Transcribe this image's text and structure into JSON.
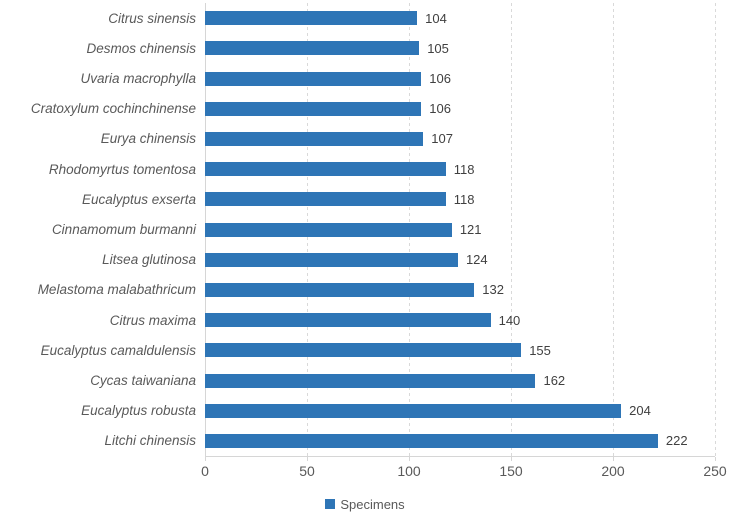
{
  "chart_data": {
    "type": "bar",
    "orientation": "horizontal",
    "title": "",
    "xlabel": "",
    "ylabel": "",
    "categories": [
      "Citrus sinensis",
      "Desmos chinensis",
      "Uvaria macrophylla",
      "Cratoxylum cochinchinense",
      "Eurya chinensis",
      "Rhodomyrtus tomentosa",
      "Eucalyptus exserta",
      "Cinnamomum burmanni",
      "Litsea glutinosa",
      "Melastoma malabathricum",
      "Citrus maxima",
      "Eucalyptus camaldulensis",
      "Cycas taiwaniana",
      "Eucalyptus robusta",
      "Litchi chinensis"
    ],
    "series": [
      {
        "name": "Specimens",
        "values": [
          104,
          105,
          106,
          106,
          107,
          118,
          118,
          121,
          124,
          132,
          140,
          155,
          162,
          204,
          222
        ]
      }
    ],
    "value_labels": [
      "104",
      "105",
      "106",
      "106",
      "107",
      "118",
      "118",
      "121",
      "124",
      "132",
      "140",
      "155",
      "162",
      "204",
      "222"
    ],
    "xlim": [
      0,
      250
    ],
    "xticks": [
      0,
      50,
      100,
      150,
      200,
      250
    ],
    "xtick_labels": [
      "0",
      "50",
      "100",
      "150",
      "200",
      "250"
    ],
    "grid": "vertical-dashed",
    "legend_position": "bottom-center",
    "legend_label": "Specimens",
    "category_style": "italic"
  },
  "colors": {
    "bar": "#2E75B6",
    "grid": "#D9D9D9",
    "axis": "#D6D6D6",
    "category_text": "#595959",
    "tick_text": "#595959",
    "value_text": "#404040",
    "legend_text": "#595959",
    "background": "#FFFFFF"
  }
}
